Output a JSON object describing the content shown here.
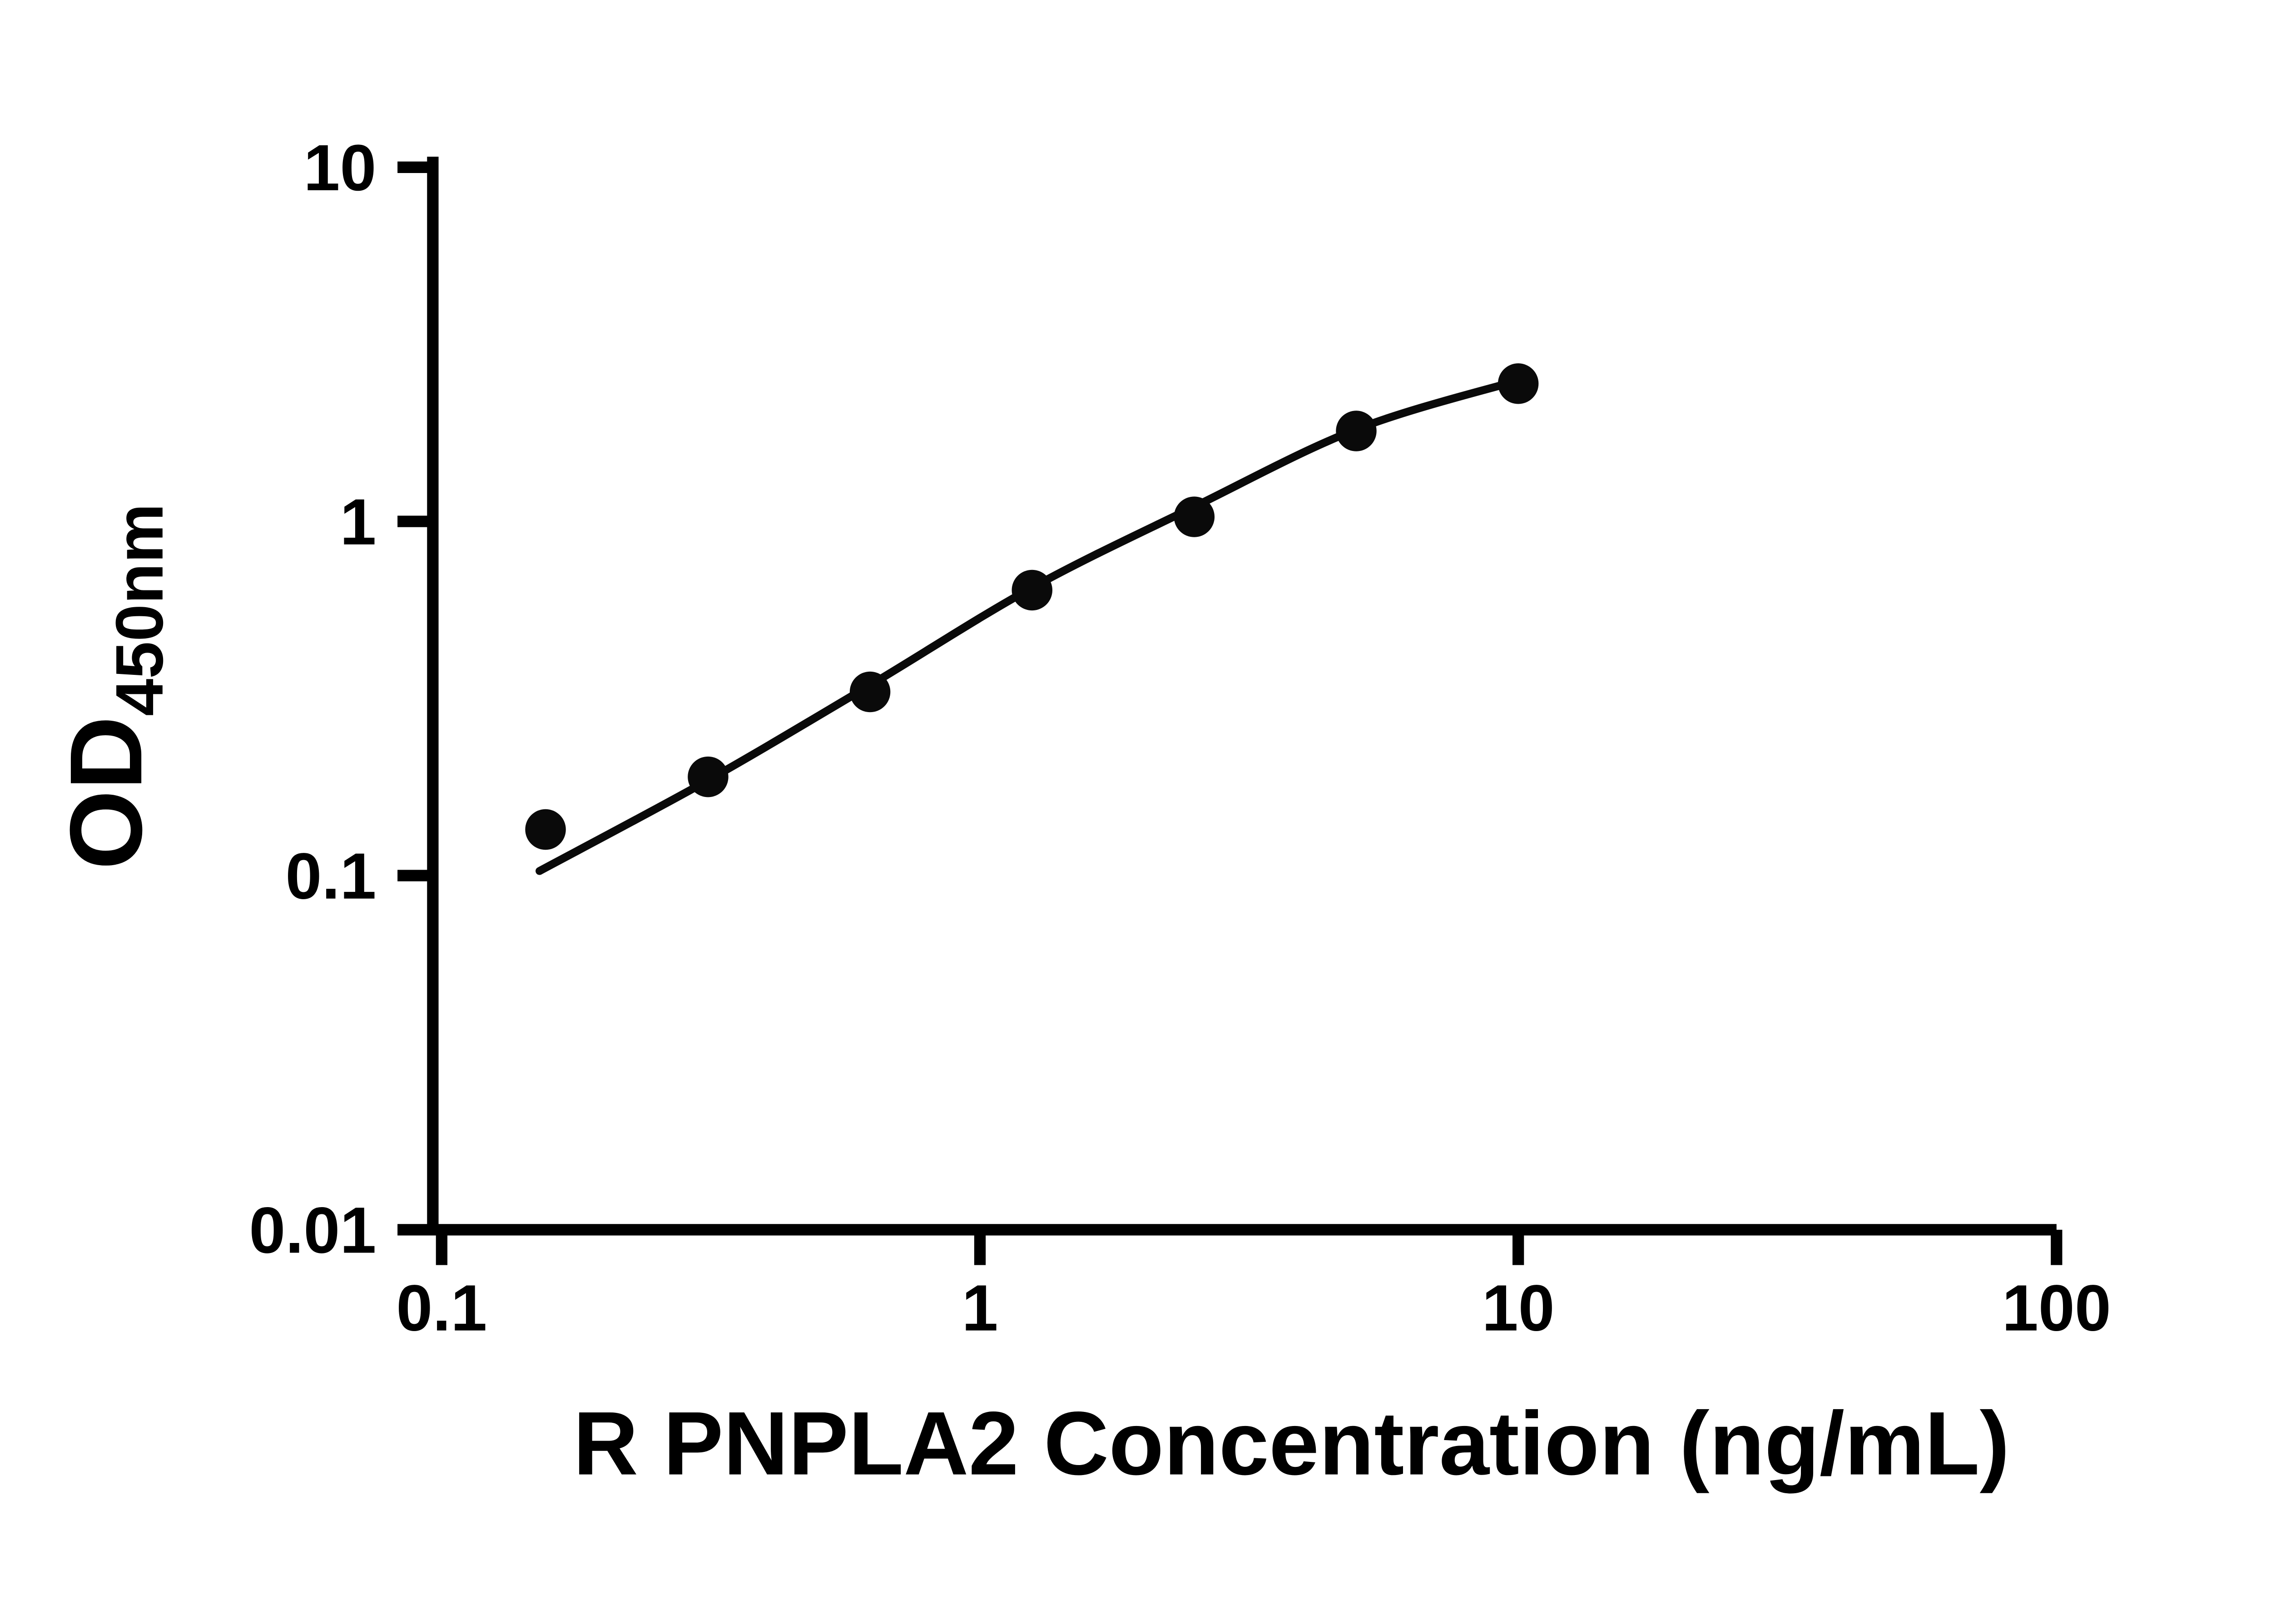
{
  "chart_data": {
    "type": "scatter",
    "title": "",
    "xlabel": "R PNPLA2 Concentration (ng/mL)",
    "ylabel": "OD450nm",
    "ylabel_main": "OD",
    "ylabel_sub": "450nm",
    "x_scale": "log",
    "y_scale": "log",
    "xlim": [
      0.1,
      100
    ],
    "ylim": [
      0.01,
      10
    ],
    "grid": false,
    "legend": false,
    "axis_color": "#000000",
    "marker_color": "#0a0a0a",
    "line_color": "#0a0a0a",
    "x_ticks": [
      {
        "value": 0.1,
        "label": "0.1"
      },
      {
        "value": 1,
        "label": "1"
      },
      {
        "value": 10,
        "label": "10"
      },
      {
        "value": 100,
        "label": "100"
      }
    ],
    "y_ticks": [
      {
        "value": 0.01,
        "label": "0.01"
      },
      {
        "value": 0.1,
        "label": "0.1"
      },
      {
        "value": 1,
        "label": "1"
      },
      {
        "value": 10,
        "label": "10"
      }
    ],
    "points": [
      {
        "x": 0.156,
        "y": 0.135
      },
      {
        "x": 0.3125,
        "y": 0.19
      },
      {
        "x": 0.625,
        "y": 0.33
      },
      {
        "x": 1.25,
        "y": 0.64
      },
      {
        "x": 2.5,
        "y": 1.03
      },
      {
        "x": 5,
        "y": 1.8
      },
      {
        "x": 10,
        "y": 2.45
      }
    ],
    "fit_curve": [
      {
        "x": 0.152,
        "y": 0.103
      },
      {
        "x": 0.3125,
        "y": 0.186
      },
      {
        "x": 0.625,
        "y": 0.345
      },
      {
        "x": 1.25,
        "y": 0.65
      },
      {
        "x": 2.5,
        "y": 1.1
      },
      {
        "x": 5,
        "y": 1.82
      },
      {
        "x": 10,
        "y": 2.5
      }
    ]
  }
}
